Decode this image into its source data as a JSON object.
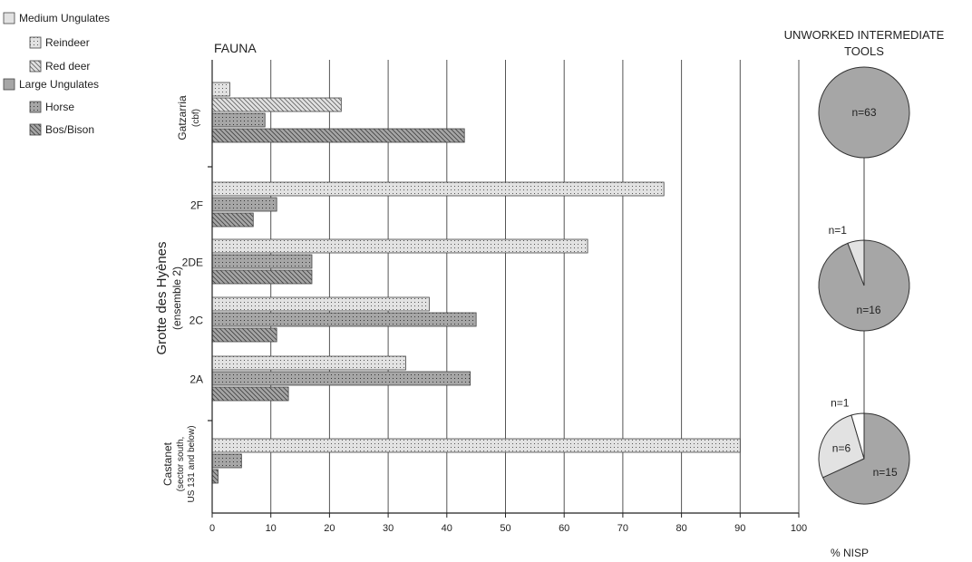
{
  "chart_data": {
    "type": "bar",
    "orientation": "horizontal",
    "title": "FAUNA",
    "xlabel": "% NISP",
    "ylabel": "Grotte des Hyènes",
    "ylabel_sub": "(ensemble 2)",
    "xlim": [
      0,
      100
    ],
    "xticks": [
      0,
      10,
      20,
      30,
      40,
      50,
      60,
      70,
      80,
      90,
      100
    ],
    "grid": "vertical",
    "legend": {
      "placement": "top-left",
      "groups": [
        {
          "label": "Medium Ungulates",
          "items": [
            "Reindeer",
            "Red deer"
          ]
        },
        {
          "label": "Large Ungulates",
          "items": [
            "Horse",
            "Bos/Bison"
          ]
        }
      ]
    },
    "series_styles": {
      "Reindeer": {
        "fill": "#e2e2e2",
        "pattern": "dots"
      },
      "Red deer": {
        "fill": "#e2e2e2",
        "pattern": "hatch"
      },
      "Horse": {
        "fill": "#a6a6a6",
        "pattern": "dots"
      },
      "Bos/Bison": {
        "fill": "#a6a6a6",
        "pattern": "hatch"
      }
    },
    "groups": [
      {
        "site": "Gatzarria",
        "site_sub": "(cbf)",
        "label": "",
        "bars": [
          {
            "series": "Reindeer",
            "value": 3
          },
          {
            "series": "Red deer",
            "value": 22
          },
          {
            "series": "Horse",
            "value": 9
          },
          {
            "series": "Bos/Bison",
            "value": 43
          }
        ]
      },
      {
        "site": "",
        "label": "2F",
        "bars": [
          {
            "series": "Reindeer",
            "value": 77
          },
          {
            "series": "Horse",
            "value": 11
          },
          {
            "series": "Bos/Bison",
            "value": 7
          }
        ]
      },
      {
        "site": "",
        "label": "2DE",
        "bars": [
          {
            "series": "Reindeer",
            "value": 64
          },
          {
            "series": "Horse",
            "value": 17
          },
          {
            "series": "Bos/Bison",
            "value": 17
          }
        ]
      },
      {
        "site": "",
        "label": "2C",
        "bars": [
          {
            "series": "Reindeer",
            "value": 37
          },
          {
            "series": "Horse",
            "value": 45
          },
          {
            "series": "Bos/Bison",
            "value": 11
          }
        ]
      },
      {
        "site": "",
        "label": "2A",
        "bars": [
          {
            "series": "Reindeer",
            "value": 33
          },
          {
            "series": "Horse",
            "value": 44
          },
          {
            "series": "Bos/Bison",
            "value": 13
          }
        ]
      },
      {
        "site": "Castanet",
        "site_sub": [
          "(sector south,",
          "US 131 and below)"
        ],
        "label": "",
        "bars": [
          {
            "series": "Reindeer",
            "value": 90
          },
          {
            "series": "Horse",
            "value": 5
          },
          {
            "series": "Bos/Bison",
            "value": 1
          }
        ]
      }
    ],
    "pies": {
      "title": [
        "UNWORKED INTERMEDIATE",
        "TOOLS"
      ],
      "items": [
        {
          "site": "Gatzarria",
          "slices": [
            {
              "label": "n=63",
              "value": 63,
              "color": "#a6a6a6"
            }
          ]
        },
        {
          "site": "Grotte des Hyènes",
          "slices": [
            {
              "label": "n=16",
              "value": 16,
              "color": "#a6a6a6"
            },
            {
              "label": "n=1",
              "value": 1,
              "color": "#e2e2e2"
            }
          ]
        },
        {
          "site": "Castanet",
          "slices": [
            {
              "label": "n=15",
              "value": 15,
              "color": "#a6a6a6"
            },
            {
              "label": "n=6",
              "value": 6,
              "color": "#e2e2e2"
            },
            {
              "label": "n=1",
              "value": 1,
              "color": "#ffffff"
            }
          ]
        }
      ]
    }
  }
}
